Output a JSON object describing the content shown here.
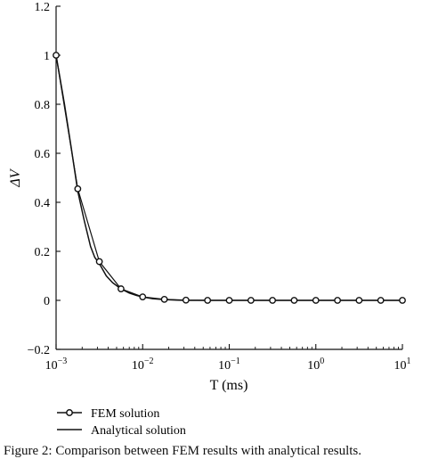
{
  "chart_data": {
    "type": "line",
    "title": "",
    "xlabel": "T (ms)",
    "ylabel": "ΔV",
    "xscale": "log",
    "xlim": [
      0.001,
      10
    ],
    "ylim": [
      -0.2,
      1.2
    ],
    "x_ticks": [
      {
        "value": 0.001,
        "base": "10",
        "exp": "−3"
      },
      {
        "value": 0.01,
        "base": "10",
        "exp": "−2"
      },
      {
        "value": 0.1,
        "base": "10",
        "exp": "−1"
      },
      {
        "value": 1,
        "base": "10",
        "exp": "0"
      },
      {
        "value": 10,
        "base": "10",
        "exp": "1"
      }
    ],
    "y_ticks": [
      "−0.2",
      "0",
      "0.2",
      "0.4",
      "0.6",
      "0.8",
      "1",
      "1.2"
    ],
    "y_tick_values": [
      -0.2,
      0,
      0.2,
      0.4,
      0.6,
      0.8,
      1.0,
      1.2
    ],
    "grid": false,
    "legend_position": "bottom-left",
    "series": [
      {
        "name": "FEM solution",
        "style": "line-with-circle-markers",
        "color": "#111111",
        "x": [
          0.001,
          0.00178,
          0.00316,
          0.00562,
          0.01,
          0.0178,
          0.0316,
          0.0562,
          0.1,
          0.178,
          0.316,
          0.562,
          1.0,
          1.78,
          3.16,
          5.62,
          10.0
        ],
        "y": [
          1.0,
          0.455,
          0.158,
          0.047,
          0.014,
          0.004,
          0.001,
          0.0,
          0.0,
          0.0,
          0.0,
          0.0,
          0.0,
          0.0,
          0.0,
          0.0,
          0.0
        ]
      },
      {
        "name": "Analytical solution",
        "style": "solid-line",
        "color": "#111111",
        "x": [
          0.001,
          0.00125,
          0.0015,
          0.00178,
          0.0021,
          0.0025,
          0.0028,
          0.00316,
          0.0038,
          0.0045,
          0.00562,
          0.007,
          0.0085,
          0.01,
          0.013,
          0.0178,
          0.025,
          0.0316,
          0.0562,
          0.1,
          0.316,
          1.0,
          3.16,
          10.0
        ],
        "y": [
          1.0,
          0.8,
          0.62,
          0.445,
          0.33,
          0.22,
          0.175,
          0.15,
          0.1,
          0.072,
          0.047,
          0.03,
          0.02,
          0.014,
          0.007,
          0.003,
          0.001,
          0.0,
          0.0,
          0.0,
          0.0,
          0.0,
          0.0,
          0.0
        ]
      }
    ]
  },
  "caption": "Figure 2: Comparison between FEM results with analytical results."
}
